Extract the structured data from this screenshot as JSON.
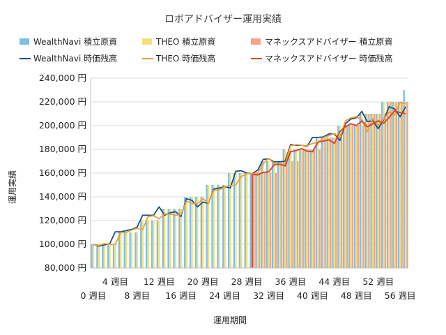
{
  "chart_data": {
    "type": "bar",
    "title": "ロボアドバイザー運用実績",
    "xlabel": "運用期間",
    "ylabel": "運用実績",
    "ylim": [
      80000,
      240000
    ],
    "y_ticks": [
      "240,000 円",
      "220,000 円",
      "200,000 円",
      "180,000 円",
      "160,000 円",
      "140,000 円",
      "120,000 円",
      "100,000 円",
      "80,000 円"
    ],
    "x_ticks_row1": [
      "4 週目",
      "12 週目",
      "20 週目",
      "28 週目",
      "36 週目",
      "44 週目",
      "52 週目"
    ],
    "x_ticks_row2": [
      "0 週目",
      "8 週目",
      "16 週目",
      "24 週目",
      "32 週目",
      "40 週目",
      "48 週目",
      "56 週目"
    ],
    "grid": true,
    "legend_position": "top",
    "colors": {
      "wn_bar": "#7fbfe6",
      "theo_bar": "#f5e07a",
      "mx_bar": "#f4a384",
      "wn_line": "#1b4f8a",
      "theo_line": "#f0a030",
      "mx_line": "#e0452a"
    },
    "weeks": [
      0,
      1,
      2,
      3,
      4,
      5,
      6,
      7,
      8,
      9,
      10,
      11,
      12,
      13,
      14,
      15,
      16,
      17,
      18,
      19,
      20,
      21,
      22,
      23,
      24,
      25,
      26,
      27,
      28,
      29,
      30,
      31,
      32,
      33,
      34,
      35,
      36,
      37,
      38,
      39,
      40,
      41,
      42,
      43,
      44,
      45,
      46,
      47,
      48,
      49,
      50,
      51,
      52,
      53,
      54,
      55,
      56,
      57
    ],
    "series": [
      {
        "name": "WealthNavi 積立原資",
        "kind": "bar",
        "values": [
          100000,
          100000,
          100000,
          100000,
          100000,
          110000,
          110000,
          110000,
          110000,
          120000,
          120000,
          120000,
          120000,
          130000,
          130000,
          130000,
          130000,
          140000,
          140000,
          140000,
          140000,
          150000,
          150000,
          150000,
          150000,
          160000,
          160000,
          160000,
          160000,
          160000,
          160000,
          170000,
          170000,
          170000,
          170000,
          180000,
          180000,
          180000,
          180000,
          180000,
          180000,
          190000,
          190000,
          190000,
          190000,
          200000,
          200000,
          200000,
          200000,
          210000,
          210000,
          210000,
          210000,
          220000,
          220000,
          220000,
          220000,
          230000
        ]
      },
      {
        "name": "THEO 積立原資",
        "kind": "bar",
        "values": [
          100000,
          100000,
          100000,
          100000,
          100000,
          110000,
          110000,
          110000,
          110000,
          120000,
          120000,
          120000,
          120000,
          130000,
          130000,
          130000,
          130000,
          140000,
          140000,
          140000,
          140000,
          150000,
          150000,
          150000,
          150000,
          160000,
          160000,
          160000,
          160000,
          160000,
          160000,
          170000,
          170000,
          170000,
          170000,
          180000,
          180000,
          180000,
          180000,
          180000,
          180000,
          190000,
          190000,
          190000,
          190000,
          200000,
          200000,
          200000,
          200000,
          210000,
          210000,
          210000,
          210000,
          220000,
          220000,
          220000,
          220000,
          220000
        ]
      },
      {
        "name": "マネックスアドバイザー 積立原資",
        "kind": "bar",
        "values": [
          null,
          null,
          null,
          null,
          null,
          null,
          null,
          null,
          null,
          null,
          null,
          null,
          null,
          null,
          null,
          null,
          null,
          null,
          null,
          null,
          null,
          null,
          null,
          null,
          null,
          null,
          null,
          null,
          null,
          160000,
          160000,
          160000,
          160000,
          160000,
          170000,
          170000,
          170000,
          170000,
          180000,
          180000,
          180000,
          180000,
          190000,
          190000,
          190000,
          190000,
          200000,
          200000,
          200000,
          200000,
          210000,
          210000,
          210000,
          210000,
          220000,
          220000,
          220000,
          220000
        ]
      },
      {
        "name": "WealthNavi 時価残高",
        "kind": "line",
        "values": [
          100000,
          98500,
          99500,
          100500,
          110500,
          110500,
          111500,
          112500,
          114500,
          124500,
          124500,
          124500,
          131500,
          124500,
          126500,
          127500,
          123500,
          138500,
          137000,
          131500,
          135500,
          134500,
          146500,
          147500,
          148500,
          147500,
          161500,
          162000,
          160000,
          159500,
          162500,
          171500,
          172000,
          169500,
          169500,
          170000,
          184000,
          183500,
          183500,
          182500,
          190000,
          190000,
          190500,
          193000,
          193000,
          187500,
          201500,
          205500,
          206500,
          212000,
          203500,
          204000,
          197500,
          205000,
          216000,
          214000,
          207500,
          216000
        ]
      },
      {
        "name": "THEO 時価残高",
        "kind": "line",
        "values": [
          100000,
          99000,
          100500,
          100000,
          100000,
          110000,
          110000,
          112000,
          113500,
          112500,
          123500,
          124000,
          121500,
          125500,
          125500,
          124500,
          125000,
          136500,
          134500,
          134000,
          138500,
          134500,
          145500,
          146000,
          148500,
          149500,
          150000,
          157000,
          159500,
          159500,
          160000,
          168000,
          172500,
          168000,
          167000,
          167500,
          183000,
          184000,
          183500,
          183000,
          185000,
          186000,
          190000,
          191500,
          193500,
          189500,
          204000,
          206500,
          207500,
          205000,
          195000,
          206000,
          200000,
          205500,
          211500,
          209000,
          219500,
          218500
        ]
      },
      {
        "name": "マネックスアドバイザー 時価残高",
        "kind": "line",
        "values": [
          null,
          null,
          null,
          null,
          null,
          null,
          null,
          null,
          null,
          null,
          null,
          null,
          null,
          null,
          null,
          null,
          null,
          null,
          null,
          null,
          null,
          null,
          null,
          null,
          null,
          null,
          null,
          null,
          null,
          159000,
          158500,
          160500,
          161000,
          167000,
          167500,
          166000,
          178000,
          179000,
          180500,
          178500,
          178000,
          186000,
          187000,
          188000,
          185000,
          195000,
          199000,
          201500,
          200000,
          204000,
          199000,
          201500,
          204000,
          202000,
          207000,
          212500,
          211000,
          210000
        ]
      }
    ]
  }
}
